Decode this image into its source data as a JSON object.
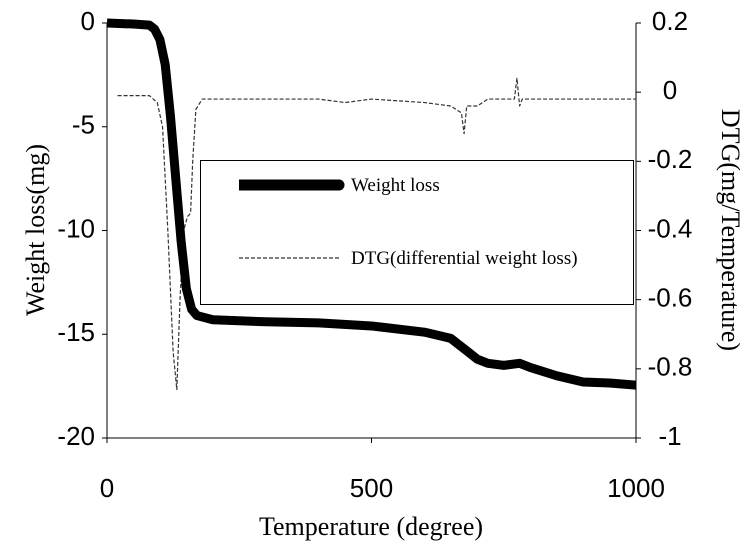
{
  "chart_data": {
    "type": "line",
    "xlabel": "Temperature (degree)",
    "ylabel": "Weight loss(mg)",
    "y2label": "DTG(mg/Temperature)",
    "xlim": [
      0,
      1000
    ],
    "xticks": [
      0,
      500,
      1000
    ],
    "ylim": [
      -20,
      0
    ],
    "yticks": [
      0,
      -5,
      -10,
      -15,
      -20
    ],
    "y2lim": [
      -1,
      0.2
    ],
    "y2ticks": [
      0.2,
      0,
      -0.2,
      -0.4,
      -0.6,
      -0.8,
      -1
    ],
    "series": [
      {
        "name": "Weight loss",
        "color": "#000000",
        "x": [
          0,
          50,
          80,
          90,
          100,
          110,
          120,
          130,
          140,
          150,
          160,
          170,
          200,
          300,
          400,
          500,
          600,
          650,
          680,
          700,
          720,
          750,
          780,
          800,
          850,
          900,
          950,
          1000
        ],
        "values": [
          0,
          -0.05,
          -0.1,
          -0.3,
          -0.8,
          -2,
          -4.5,
          -7.5,
          -10.5,
          -12.8,
          -13.8,
          -14.1,
          -14.3,
          -14.4,
          -14.45,
          -14.6,
          -14.9,
          -15.2,
          -15.8,
          -16.2,
          -16.4,
          -16.5,
          -16.4,
          -16.6,
          -17,
          -17.3,
          -17.35,
          -17.45
        ]
      },
      {
        "name": "DTG(differential weight loss)",
        "color": "#333333",
        "axis": "y2",
        "x": [
          20,
          80,
          95,
          105,
          115,
          125,
          132,
          138,
          145,
          152,
          158,
          162,
          168,
          180,
          300,
          400,
          450,
          500,
          600,
          650,
          670,
          675,
          680,
          700,
          720,
          770,
          775,
          780,
          785,
          850,
          1000
        ],
        "values": [
          -0.01,
          -0.01,
          -0.03,
          -0.1,
          -0.4,
          -0.75,
          -0.86,
          -0.6,
          -0.4,
          -0.36,
          -0.35,
          -0.2,
          -0.05,
          -0.02,
          -0.02,
          -0.02,
          -0.03,
          -0.02,
          -0.03,
          -0.04,
          -0.06,
          -0.12,
          -0.04,
          -0.04,
          -0.02,
          -0.02,
          0.04,
          -0.04,
          -0.02,
          -0.02,
          -0.02
        ]
      }
    ]
  }
}
